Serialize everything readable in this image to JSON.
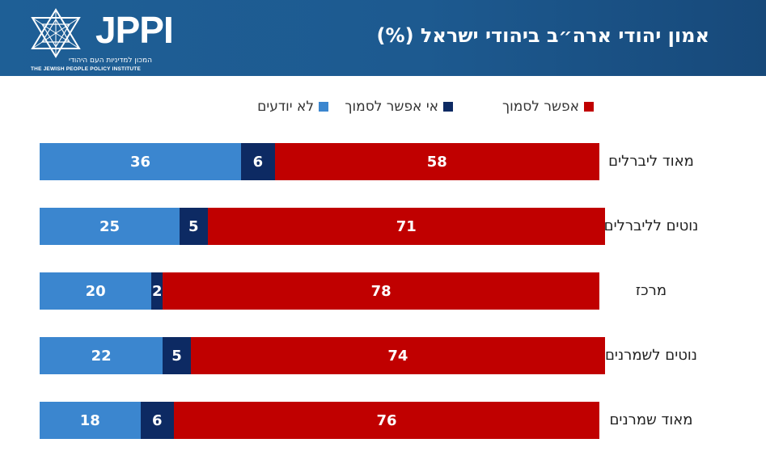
{
  "header": {
    "logo_text": "JPPI",
    "logo_subtitle_he": "המכון למדיניות העם היהודי",
    "logo_subtitle_en": "THE JEWISH PEOPLE POLICY INSTITUTE",
    "title": "אמון יהודי ארה״ב ביהודי ישראל (%)"
  },
  "colors": {
    "trust": "#c00000",
    "no_trust": "#0d2a63",
    "dont_know": "#3b86cf",
    "header_bg": "#1d5a90"
  },
  "chart_data": {
    "type": "bar",
    "orientation": "horizontal",
    "stacked": true,
    "xlim": [
      0,
      100
    ],
    "categories": [
      "מאוד ליברלים",
      "נוטים לליברלים",
      "מרכז",
      "נוטים לשמרנים",
      "מאוד שמרנים"
    ],
    "series": [
      {
        "name": "אפשר לסמוך",
        "color": "#c00000",
        "values": [
          58,
          71,
          78,
          74,
          76
        ]
      },
      {
        "name": "אי אפשר לסמוך",
        "color": "#0d2a63",
        "values": [
          6,
          5,
          2,
          5,
          6
        ]
      },
      {
        "name": "לא יודעים",
        "color": "#3b86cf",
        "values": [
          36,
          25,
          20,
          22,
          18
        ]
      }
    ],
    "legend_position": "top",
    "data_labels": true
  }
}
